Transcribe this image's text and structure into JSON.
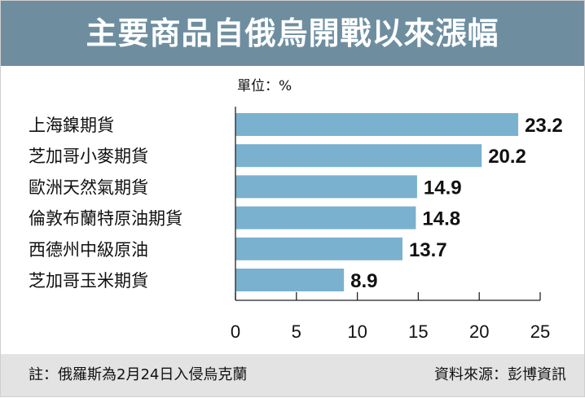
{
  "title": "主要商品自俄烏開戰以來漲幅",
  "footer": {
    "note": "註：俄羅斯為2月24日入侵烏克蘭",
    "source": "資料來源：彭博資訊"
  },
  "colors": {
    "header": "#6e8ea0",
    "bar": "#7ab1cf",
    "footer": "#e3e3e3"
  },
  "chart_data": {
    "type": "bar",
    "orientation": "horizontal",
    "unit_label": "單位：%",
    "categories": [
      "上海鎳期貨",
      "芝加哥小麥期貨",
      "歐洲天然氣期貨",
      "倫敦布蘭特原油期貨",
      "西德州中級原油",
      "芝加哥玉米期貨"
    ],
    "values": [
      23.2,
      20.2,
      14.9,
      14.8,
      13.7,
      8.9
    ],
    "value_labels": [
      "23.2",
      "20.2",
      "14.9",
      "14.8",
      "13.7",
      "8.9"
    ],
    "xticks": [
      "0",
      "5",
      "10",
      "15",
      "20",
      "25"
    ],
    "xlim": [
      0,
      25
    ],
    "grid": false
  }
}
